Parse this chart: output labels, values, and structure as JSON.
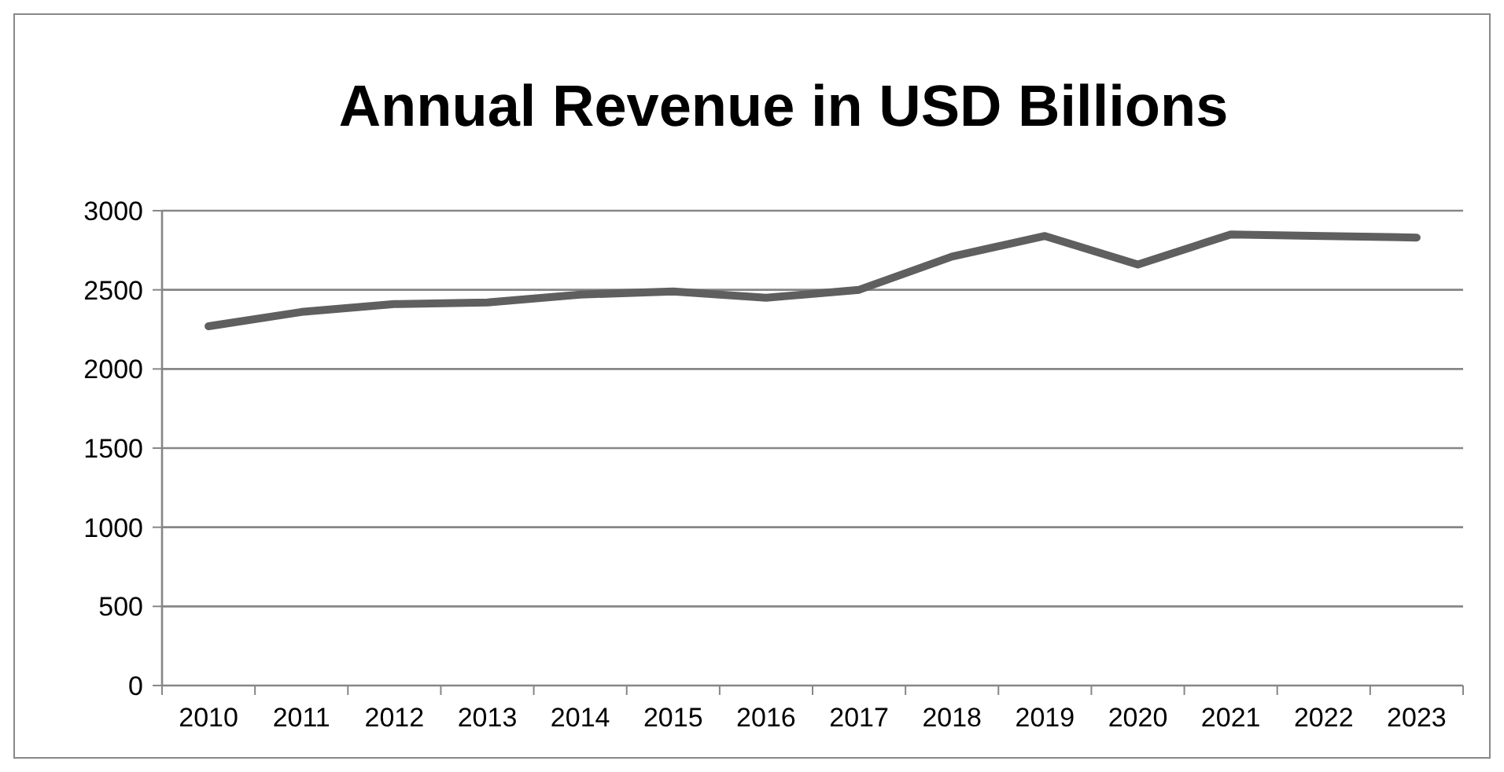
{
  "chart_data": {
    "type": "line",
    "title": "Annual Revenue in USD Billions",
    "categories": [
      "2010",
      "2011",
      "2012",
      "2013",
      "2014",
      "2015",
      "2016",
      "2017",
      "2018",
      "2019",
      "2020",
      "2021",
      "2022",
      "2023"
    ],
    "series": [
      {
        "color": "#5f5f5f",
        "values": [
          2270,
          2360,
          2410,
          2420,
          2470,
          2490,
          2450,
          2500,
          2710,
          2840,
          2660,
          2850,
          2840,
          2830
        ]
      }
    ],
    "ylim": [
      0,
      3000
    ],
    "yticks": [
      0,
      500,
      1000,
      1500,
      2000,
      2500,
      3000
    ],
    "grid": "y",
    "marker": "none",
    "line_style": "solid"
  }
}
